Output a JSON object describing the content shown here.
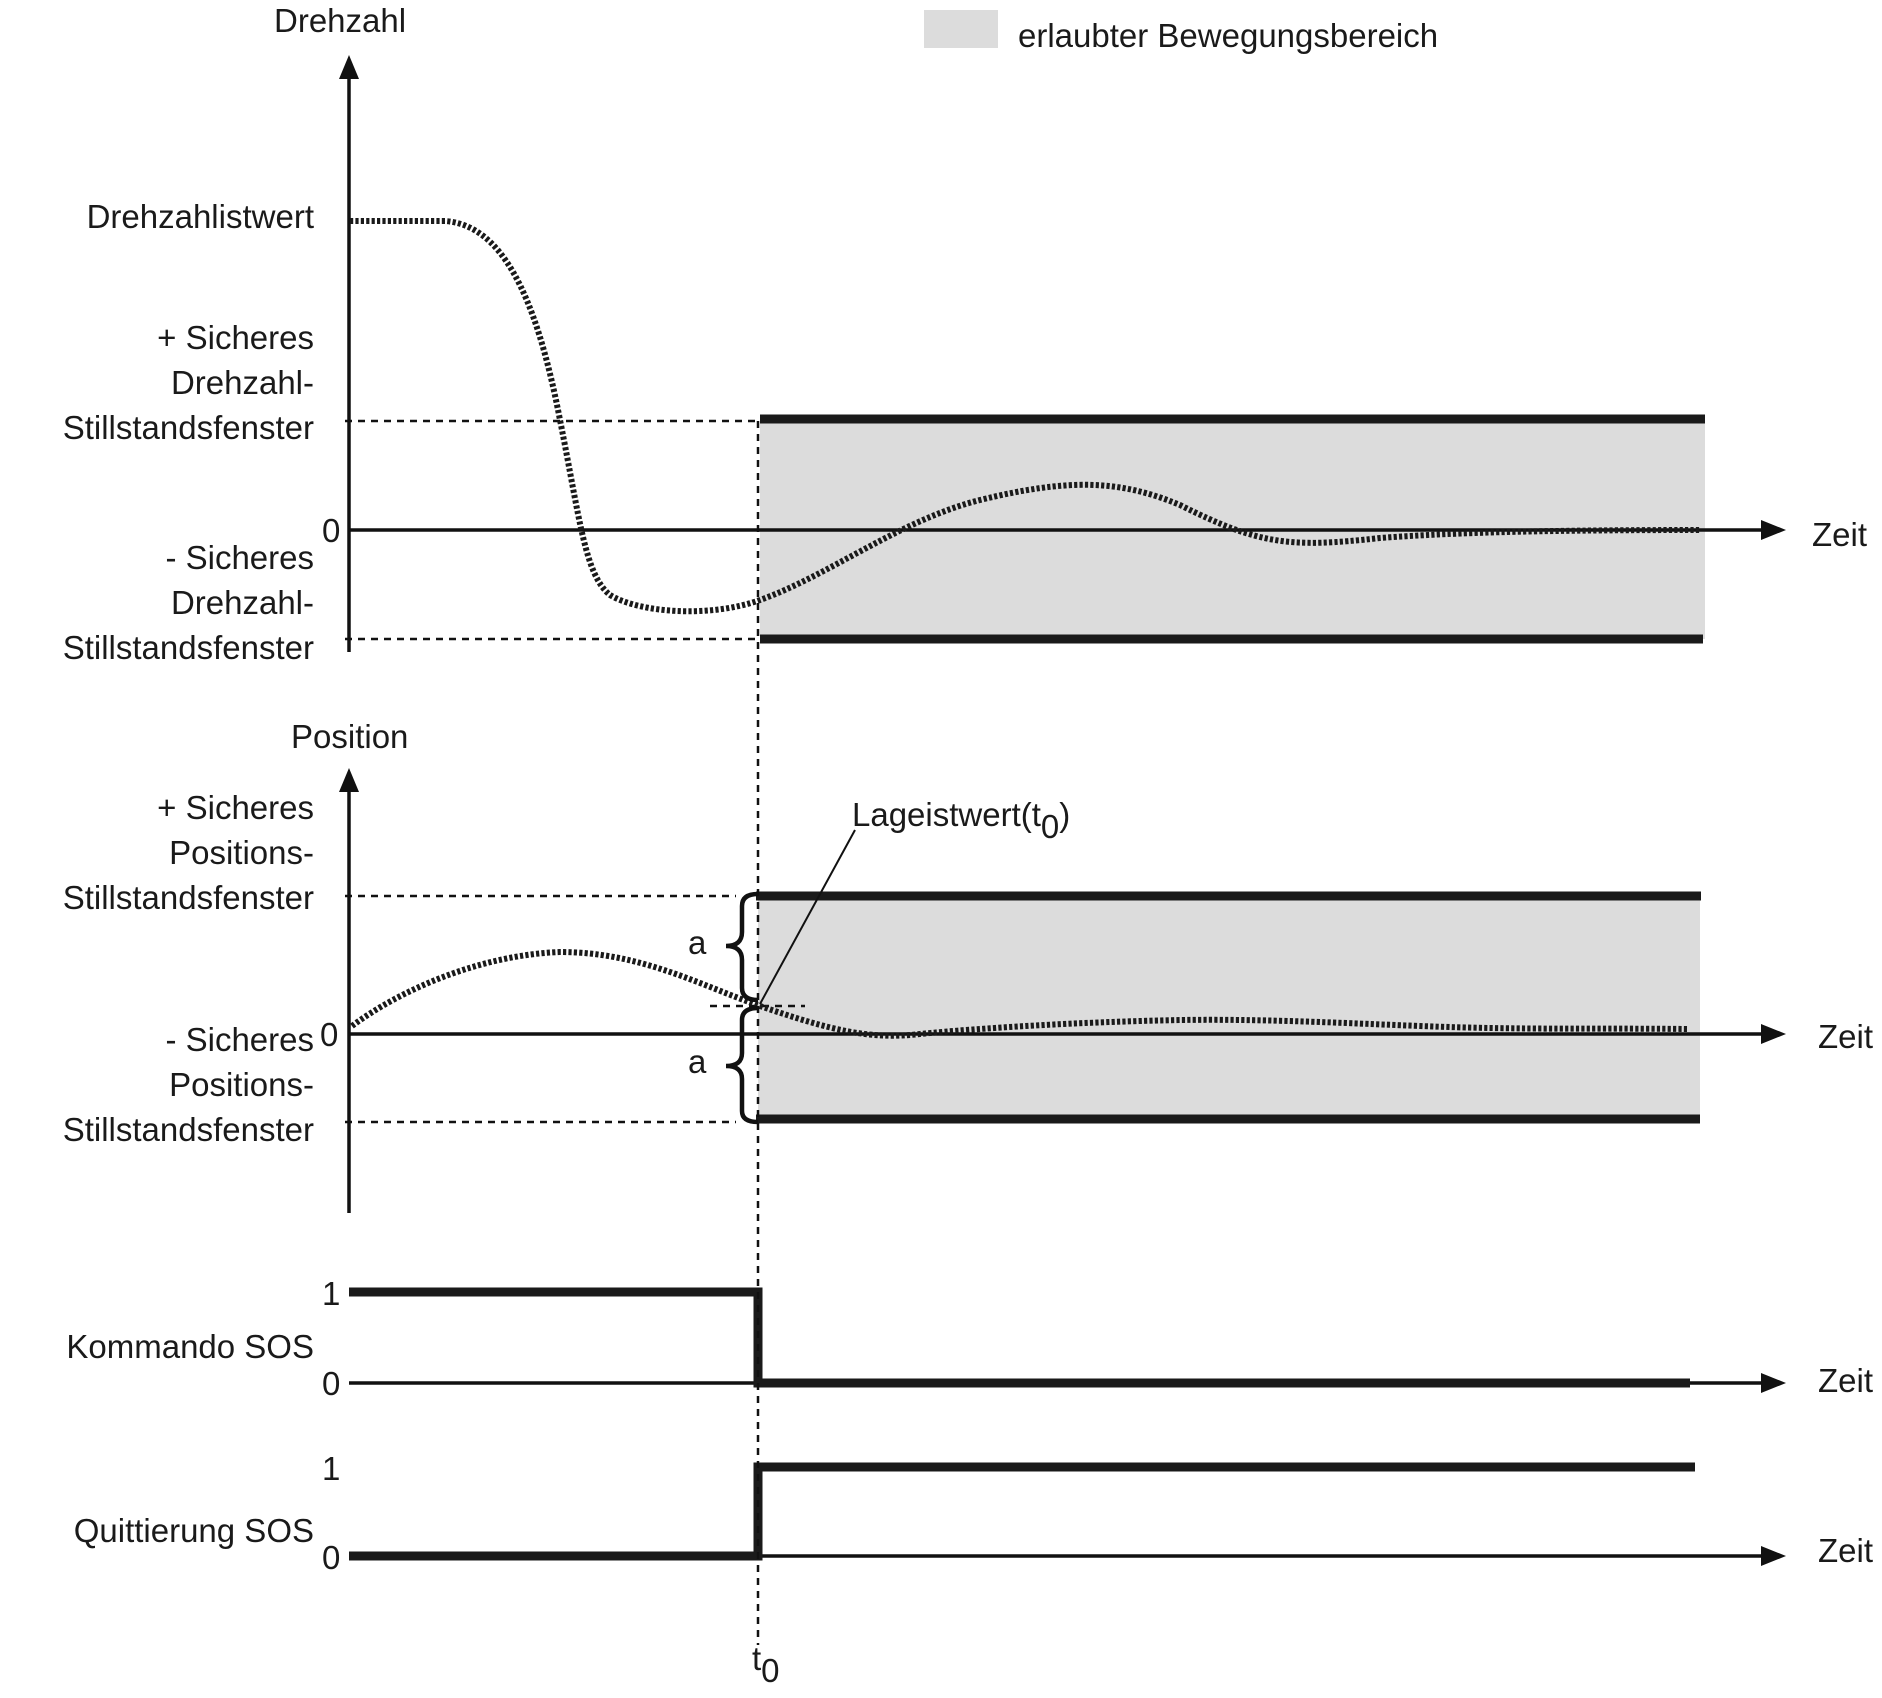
{
  "colors": {
    "region": "#dcdcdc",
    "ink": "#1a1a1a"
  },
  "legend": {
    "label": "erlaubter Bewegungsbereich"
  },
  "speed_panel": {
    "y_axis_label": "Drehzahl",
    "actual_label": "Drehzahlistwert",
    "upper_window": [
      "+ Sicheres",
      "Drehzahl-",
      "Stillstandsfenster"
    ],
    "zero_label": "0",
    "lower_window": [
      "- Sicheres",
      "Drehzahl-",
      "Stillstandsfenster"
    ],
    "x_axis_label": "Zeit"
  },
  "position_panel": {
    "y_axis_label": "Position",
    "upper_window": [
      "+ Sicheres",
      "Positions-",
      "Stillstandsfenster"
    ],
    "zero_label": "0",
    "lower_window": [
      "- Sicheres",
      "Positions-",
      "Stillstandsfenster"
    ],
    "x_axis_label": "Zeit",
    "annotation": {
      "text": "Lageistwert(t",
      "sub": "0",
      "close": ")"
    },
    "brace_label_upper": "a",
    "brace_label_lower": "a"
  },
  "command_panel": {
    "label": "Kommando SOS",
    "high_label": "1",
    "low_label": "0",
    "x_axis_label": "Zeit"
  },
  "ack_panel": {
    "label": "Quittierung SOS",
    "high_label": "1",
    "low_label": "0",
    "x_axis_label": "Zeit"
  },
  "time_marker": {
    "label": "t",
    "sub": "0"
  }
}
